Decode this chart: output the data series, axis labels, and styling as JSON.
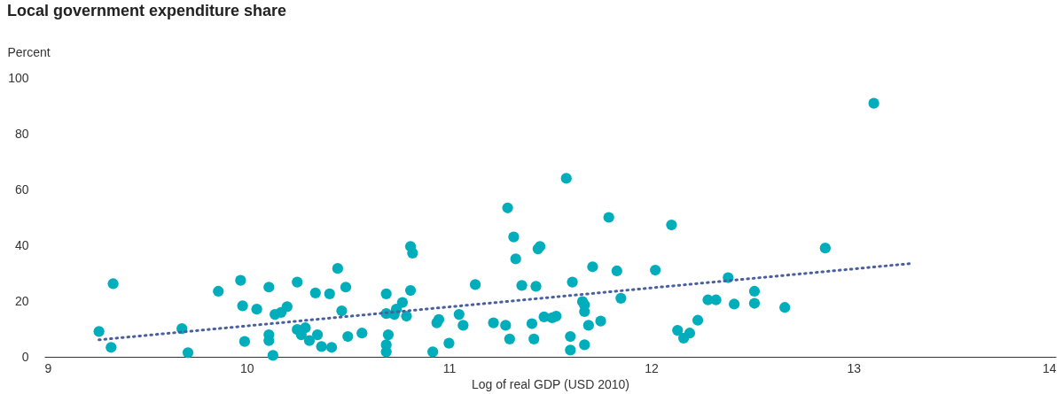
{
  "chart_data": {
    "type": "scatter",
    "title": "Local government expenditure share",
    "ylabel": "Percent",
    "xlabel": "Log of real GDP (USD 2010)",
    "xlim": [
      9,
      14
    ],
    "xticks": [
      9,
      10,
      11,
      12,
      13,
      14
    ],
    "ylim": [
      0,
      100
    ],
    "yticks": [
      0,
      20,
      40,
      60,
      80,
      100
    ],
    "grid": false,
    "series": [
      {
        "marker": "circle",
        "color": "#00adbb",
        "x": [
          9.27,
          9.34,
          9.33,
          9.68,
          9.71,
          9.86,
          9.97,
          9.98,
          9.99,
          10.05,
          10.11,
          10.11,
          10.13,
          10.11,
          10.14,
          10.17,
          10.2,
          10.25,
          10.25,
          10.27,
          10.29,
          10.31,
          10.34,
          10.35,
          10.37,
          10.41,
          10.42,
          10.45,
          10.47,
          10.49,
          10.5,
          10.57,
          10.69,
          10.69,
          10.69,
          10.69,
          10.7,
          10.73,
          10.74,
          10.77,
          10.79,
          10.81,
          10.81,
          10.82,
          10.92,
          10.94,
          10.95,
          11.0,
          11.05,
          11.07,
          11.13,
          11.22,
          11.28,
          11.29,
          11.3,
          11.32,
          11.33,
          11.36,
          11.41,
          11.42,
          11.43,
          11.44,
          11.45,
          11.47,
          11.51,
          11.53,
          11.58,
          11.6,
          11.6,
          11.61,
          11.66,
          11.67,
          11.67,
          11.67,
          11.69,
          11.71,
          11.75,
          11.79,
          11.83,
          11.85,
          12.02,
          12.1,
          12.13,
          12.16,
          12.19,
          12.23,
          12.28,
          12.32,
          12.38,
          12.41,
          12.51,
          12.51,
          12.66,
          12.86,
          13.1
        ],
        "values": [
          9.1,
          26.2,
          3.4,
          10.1,
          1.5,
          23.5,
          27.4,
          18.3,
          5.5,
          17.1,
          25.0,
          7.9,
          0.5,
          5.8,
          15.2,
          15.9,
          18.0,
          26.8,
          9.8,
          7.9,
          10.4,
          5.8,
          22.9,
          7.9,
          3.7,
          22.6,
          3.4,
          31.7,
          16.5,
          25.0,
          7.3,
          8.5,
          15.5,
          22.6,
          1.8,
          4.3,
          7.9,
          15.2,
          17.1,
          19.5,
          14.6,
          23.8,
          39.6,
          37.2,
          1.8,
          12.2,
          13.4,
          4.9,
          15.2,
          11.3,
          25.9,
          12.2,
          11.3,
          53.4,
          6.4,
          43.0,
          35.1,
          25.6,
          11.9,
          6.4,
          25.3,
          38.7,
          39.6,
          14.3,
          14.0,
          14.6,
          64.0,
          7.3,
          2.4,
          26.8,
          19.8,
          18.6,
          16.2,
          4.3,
          11.3,
          32.3,
          12.8,
          50.0,
          30.8,
          21.0,
          31.1,
          47.3,
          9.5,
          6.7,
          8.5,
          13.1,
          20.4,
          20.4,
          28.4,
          18.9,
          23.5,
          19.2,
          17.7,
          39.0,
          90.9
        ]
      },
      {
        "type": "line",
        "color": "#4a5fa0",
        "line_style": "dotted",
        "x": [
          9.27,
          13.29
        ],
        "values": [
          6.1,
          33.5
        ]
      }
    ]
  }
}
